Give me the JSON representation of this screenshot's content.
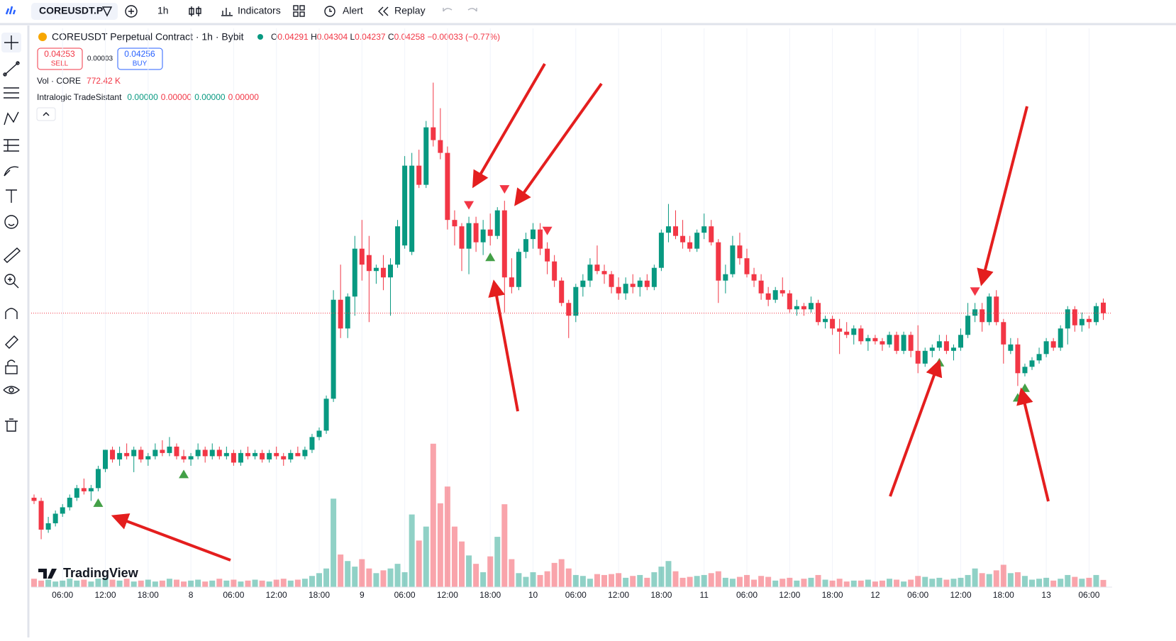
{
  "toolbar": {
    "symbol": "COREUSDT.P",
    "interval": "1h",
    "indicators": "Indicators",
    "alert": "Alert",
    "replay": "Replay"
  },
  "legend": {
    "title": "COREUSDT Perpetual Contract · 1h · Bybit",
    "o_label": "O",
    "open": 0.04291,
    "h_label": "H",
    "high": 0.04304,
    "l_label": "L",
    "low": 0.04237,
    "c_label": "C",
    "close": 0.04258,
    "change": "−0.00033 (−0.77%)"
  },
  "trade": {
    "sell_price": 0.04253,
    "sell": "SELL",
    "spread": 3e-05,
    "buy_price": 0.04256,
    "buy": "BUY"
  },
  "volume_legend": {
    "label": "Vol · CORE",
    "value": "772.42 K"
  },
  "indicator": {
    "name": "Intralogic TradeSistant",
    "values": [
      "0.00000",
      "0.00000",
      "0.00000",
      "0.00000"
    ]
  },
  "logo": "TradingView",
  "chart_data": {
    "type": "candlestick",
    "up_color": "#089981",
    "down_color": "#f23645",
    "ylim": [
      0.034,
      0.0515
    ],
    "volume_lim": [
      0,
      60000
    ],
    "candles": [
      [
        0.0368,
        0.0369,
        0.0366,
        0.0367
      ],
      [
        0.0367,
        0.0368,
        0.0355,
        0.0358
      ],
      [
        0.0358,
        0.0362,
        0.0357,
        0.036
      ],
      [
        0.036,
        0.0364,
        0.0359,
        0.0363
      ],
      [
        0.0363,
        0.0366,
        0.0362,
        0.0365
      ],
      [
        0.0365,
        0.0369,
        0.0364,
        0.0368
      ],
      [
        0.0368,
        0.0372,
        0.0367,
        0.0371
      ],
      [
        0.0371,
        0.0374,
        0.0369,
        0.037
      ],
      [
        0.037,
        0.0372,
        0.0367,
        0.0371
      ],
      [
        0.0371,
        0.0378,
        0.037,
        0.0377
      ],
      [
        0.0377,
        0.0383,
        0.0376,
        0.0383
      ],
      [
        0.0383,
        0.0384,
        0.0379,
        0.038
      ],
      [
        0.038,
        0.0384,
        0.0378,
        0.0382
      ],
      [
        0.0382,
        0.0385,
        0.038,
        0.0381
      ],
      [
        0.0381,
        0.0384,
        0.0376,
        0.0383
      ],
      [
        0.0383,
        0.0384,
        0.0379,
        0.038
      ],
      [
        0.038,
        0.0382,
        0.0378,
        0.0381
      ],
      [
        0.0381,
        0.0385,
        0.038,
        0.0383
      ],
      [
        0.0383,
        0.0386,
        0.0381,
        0.0382
      ],
      [
        0.0382,
        0.0387,
        0.0381,
        0.0384
      ],
      [
        0.0384,
        0.0385,
        0.038,
        0.0381
      ],
      [
        0.0381,
        0.0383,
        0.0379,
        0.038
      ],
      [
        0.038,
        0.0382,
        0.0378,
        0.0381
      ],
      [
        0.0381,
        0.0385,
        0.038,
        0.0383
      ],
      [
        0.0383,
        0.0384,
        0.0379,
        0.0381
      ],
      [
        0.0381,
        0.0385,
        0.038,
        0.0383
      ],
      [
        0.0383,
        0.0384,
        0.038,
        0.0381
      ],
      [
        0.0381,
        0.0384,
        0.038,
        0.0382
      ],
      [
        0.0382,
        0.0383,
        0.0378,
        0.0379
      ],
      [
        0.0379,
        0.0383,
        0.0378,
        0.0382
      ],
      [
        0.0382,
        0.0384,
        0.038,
        0.0381
      ],
      [
        0.0381,
        0.0383,
        0.038,
        0.0382
      ],
      [
        0.0382,
        0.0383,
        0.0379,
        0.038
      ],
      [
        0.038,
        0.0383,
        0.0379,
        0.0382
      ],
      [
        0.0382,
        0.0384,
        0.038,
        0.0381
      ],
      [
        0.0381,
        0.0382,
        0.0378,
        0.038
      ],
      [
        0.038,
        0.0383,
        0.0379,
        0.0382
      ],
      [
        0.0382,
        0.0384,
        0.0381,
        0.0381
      ],
      [
        0.0381,
        0.0384,
        0.038,
        0.0383
      ],
      [
        0.0383,
        0.0388,
        0.0382,
        0.0387
      ],
      [
        0.0387,
        0.039,
        0.0386,
        0.0389
      ],
      [
        0.0389,
        0.04,
        0.0388,
        0.0399
      ],
      [
        0.0399,
        0.0433,
        0.0398,
        0.043
      ],
      [
        0.043,
        0.0441,
        0.0418,
        0.0421
      ],
      [
        0.0421,
        0.0432,
        0.0418,
        0.0431
      ],
      [
        0.0431,
        0.045,
        0.0425,
        0.0446
      ],
      [
        0.0446,
        0.0455,
        0.0436,
        0.0441
      ],
      [
        0.0444,
        0.045,
        0.0423,
        0.0439
      ],
      [
        0.0439,
        0.0441,
        0.0435,
        0.044
      ],
      [
        0.044,
        0.0444,
        0.0433,
        0.0437
      ],
      [
        0.0437,
        0.0443,
        0.0425,
        0.0441
      ],
      [
        0.0441,
        0.0455,
        0.044,
        0.0453
      ],
      [
        0.0447,
        0.0475,
        0.0446,
        0.0472
      ],
      [
        0.0445,
        0.0476,
        0.0444,
        0.0472
      ],
      [
        0.0472,
        0.0477,
        0.0465,
        0.0466
      ],
      [
        0.0466,
        0.0486,
        0.0465,
        0.0484
      ],
      [
        0.0484,
        0.0498,
        0.0478,
        0.048
      ],
      [
        0.048,
        0.049,
        0.0474,
        0.0476
      ],
      [
        0.0476,
        0.0478,
        0.0452,
        0.0455
      ],
      [
        0.0455,
        0.0458,
        0.0447,
        0.0453
      ],
      [
        0.0453,
        0.0454,
        0.0439,
        0.0446
      ],
      [
        0.0446,
        0.0456,
        0.0438,
        0.0454
      ],
      [
        0.0454,
        0.0456,
        0.0445,
        0.0448
      ],
      [
        0.0448,
        0.0455,
        0.0444,
        0.0452
      ],
      [
        0.0452,
        0.0457,
        0.0447,
        0.045
      ],
      [
        0.045,
        0.0459,
        0.0449,
        0.0458
      ],
      [
        0.0458,
        0.0461,
        0.0426,
        0.0437
      ],
      [
        0.0437,
        0.0443,
        0.0432,
        0.0434
      ],
      [
        0.0434,
        0.0446,
        0.0433,
        0.0445
      ],
      [
        0.0445,
        0.0451,
        0.0443,
        0.0449
      ],
      [
        0.0449,
        0.0454,
        0.0446,
        0.0452
      ],
      [
        0.0452,
        0.0454,
        0.0444,
        0.0446
      ],
      [
        0.0446,
        0.0448,
        0.0438,
        0.0442
      ],
      [
        0.0442,
        0.0444,
        0.0434,
        0.0436
      ],
      [
        0.0436,
        0.0437,
        0.0428,
        0.0429
      ],
      [
        0.0429,
        0.043,
        0.0418,
        0.0425
      ],
      [
        0.0425,
        0.0435,
        0.0423,
        0.0434
      ],
      [
        0.0434,
        0.0438,
        0.0431,
        0.0436
      ],
      [
        0.0436,
        0.0443,
        0.0434,
        0.0441
      ],
      [
        0.0441,
        0.0447,
        0.0438,
        0.0439
      ],
      [
        0.0439,
        0.0441,
        0.0435,
        0.0438
      ],
      [
        0.0438,
        0.0439,
        0.0432,
        0.0434
      ],
      [
        0.0434,
        0.0437,
        0.043,
        0.0432
      ],
      [
        0.0432,
        0.0437,
        0.043,
        0.0435
      ],
      [
        0.0435,
        0.0438,
        0.0432,
        0.0434
      ],
      [
        0.0434,
        0.0437,
        0.0431,
        0.0436
      ],
      [
        0.0436,
        0.0438,
        0.0433,
        0.0434
      ],
      [
        0.0434,
        0.0441,
        0.0433,
        0.044
      ],
      [
        0.044,
        0.0452,
        0.0439,
        0.0451
      ],
      [
        0.0451,
        0.046,
        0.0448,
        0.0453
      ],
      [
        0.0453,
        0.0458,
        0.0449,
        0.045
      ],
      [
        0.045,
        0.0455,
        0.0446,
        0.0448
      ],
      [
        0.0448,
        0.045,
        0.0445,
        0.0446
      ],
      [
        0.0446,
        0.0452,
        0.0445,
        0.0451
      ],
      [
        0.0451,
        0.0457,
        0.0449,
        0.0453
      ],
      [
        0.0453,
        0.0455,
        0.0447,
        0.0448
      ],
      [
        0.0448,
        0.0449,
        0.0429,
        0.0436
      ],
      [
        0.0436,
        0.0441,
        0.0432,
        0.0438
      ],
      [
        0.0438,
        0.045,
        0.0437,
        0.0447
      ],
      [
        0.0447,
        0.0451,
        0.0441,
        0.0443
      ],
      [
        0.0443,
        0.0446,
        0.0437,
        0.0438
      ],
      [
        0.0438,
        0.044,
        0.0434,
        0.0436
      ],
      [
        0.0436,
        0.0438,
        0.043,
        0.0432
      ],
      [
        0.0432,
        0.0434,
        0.0428,
        0.043
      ],
      [
        0.043,
        0.0434,
        0.0429,
        0.0433
      ],
      [
        0.0433,
        0.0437,
        0.0431,
        0.0432
      ],
      [
        0.0432,
        0.0433,
        0.0426,
        0.0427
      ],
      [
        0.0427,
        0.043,
        0.0425,
        0.0428
      ],
      [
        0.0428,
        0.0429,
        0.0425,
        0.0427
      ],
      [
        0.0427,
        0.0431,
        0.0426,
        0.0429
      ],
      [
        0.0429,
        0.043,
        0.0422,
        0.0423
      ],
      [
        0.0423,
        0.0425,
        0.0421,
        0.0424
      ],
      [
        0.0424,
        0.0425,
        0.0419,
        0.0421
      ],
      [
        0.0421,
        0.0424,
        0.0413,
        0.042
      ],
      [
        0.042,
        0.0423,
        0.0418,
        0.0419
      ],
      [
        0.0419,
        0.0422,
        0.0416,
        0.0421
      ],
      [
        0.0421,
        0.0422,
        0.0416,
        0.0417
      ],
      [
        0.0417,
        0.0419,
        0.0414,
        0.0418
      ],
      [
        0.0418,
        0.0419,
        0.0416,
        0.0417
      ],
      [
        0.0417,
        0.0418,
        0.0414,
        0.0416
      ],
      [
        0.0416,
        0.042,
        0.0415,
        0.0419
      ],
      [
        0.0419,
        0.042,
        0.0413,
        0.0414
      ],
      [
        0.0414,
        0.042,
        0.0413,
        0.0419
      ],
      [
        0.0419,
        0.042,
        0.0412,
        0.0414
      ],
      [
        0.0414,
        0.0422,
        0.0407,
        0.041
      ],
      [
        0.041,
        0.0415,
        0.0409,
        0.0414
      ],
      [
        0.0414,
        0.0416,
        0.0412,
        0.0415
      ],
      [
        0.0415,
        0.0419,
        0.0414,
        0.0417
      ],
      [
        0.0417,
        0.0419,
        0.0413,
        0.0414
      ],
      [
        0.0414,
        0.0416,
        0.0411,
        0.0415
      ],
      [
        0.0415,
        0.0421,
        0.0414,
        0.0419
      ],
      [
        0.0419,
        0.0429,
        0.0418,
        0.0425
      ],
      [
        0.0425,
        0.0429,
        0.0423,
        0.0427
      ],
      [
        0.0427,
        0.0429,
        0.042,
        0.0423
      ],
      [
        0.0423,
        0.0432,
        0.0422,
        0.0431
      ],
      [
        0.0431,
        0.0433,
        0.0422,
        0.0423
      ],
      [
        0.0423,
        0.0424,
        0.041,
        0.0416
      ],
      [
        0.0414,
        0.0418,
        0.0413,
        0.0416
      ],
      [
        0.0416,
        0.0418,
        0.0403,
        0.0407
      ],
      [
        0.0407,
        0.041,
        0.0406,
        0.0409
      ],
      [
        0.0409,
        0.0412,
        0.0408,
        0.0411
      ],
      [
        0.0411,
        0.0415,
        0.041,
        0.0413
      ],
      [
        0.0413,
        0.0418,
        0.0412,
        0.0417
      ],
      [
        0.0417,
        0.0418,
        0.0414,
        0.0415
      ],
      [
        0.0415,
        0.0422,
        0.0414,
        0.0421
      ],
      [
        0.0421,
        0.0428,
        0.0416,
        0.0427
      ],
      [
        0.0427,
        0.0428,
        0.042,
        0.0422
      ],
      [
        0.0422,
        0.0426,
        0.042,
        0.0424
      ],
      [
        0.0424,
        0.0425,
        0.0421,
        0.0423
      ],
      [
        0.0423,
        0.0429,
        0.0422,
        0.0428
      ],
      [
        0.04291,
        0.04304,
        0.04237,
        0.04258
      ]
    ],
    "volumes": [
      900,
      700,
      800,
      600,
      700,
      900,
      700,
      800,
      600,
      900,
      1000,
      800,
      700,
      900,
      600,
      700,
      800,
      600,
      700,
      900,
      800,
      600,
      700,
      800,
      600,
      700,
      900,
      700,
      800,
      600,
      700,
      800,
      700,
      600,
      800,
      900,
      700,
      800,
      900,
      1200,
      1500,
      2000,
      9500,
      3500,
      2800,
      2200,
      3000,
      2000,
      1500,
      1800,
      2000,
      2500,
      1600,
      7800,
      5000,
      6500,
      15400,
      9000,
      10800,
      6500,
      4900,
      3400,
      2500,
      1600,
      3300,
      5400,
      8900,
      3000,
      1500,
      1100,
      1600,
      1300,
      1700,
      2600,
      3000,
      2000,
      1300,
      1200,
      900,
      1400,
      1300,
      1400,
      1500,
      1000,
      1200,
      1300,
      1000,
      1600,
      2200,
      2800,
      1700,
      1000,
      1100,
      1200,
      1300,
      1500,
      1700,
      1000,
      900,
      1100,
      1300,
      800,
      1200,
      1100,
      700,
      900,
      1000,
      700,
      900,
      1000,
      1300,
      800,
      700,
      900,
      600,
      700,
      700,
      800,
      600,
      700,
      900,
      800,
      600,
      800,
      1200,
      1100,
      900,
      1000,
      800,
      900,
      1000,
      1300,
      2000,
      1500,
      1400,
      1800,
      2400,
      1500,
      1600,
      1200,
      800,
      900,
      1000,
      700,
      900,
      1300,
      1100,
      900,
      1000,
      1300,
      772.42
    ],
    "buy_signals": [
      9,
      21,
      64,
      127,
      138,
      139
    ],
    "sell_signals": [
      61,
      66,
      72,
      132
    ],
    "x_labels": [
      "06:00",
      "12:00",
      "18:00",
      "8",
      "06:00",
      "12:00",
      "18:00",
      "9",
      "06:00",
      "12:00",
      "18:00",
      "10",
      "06:00",
      "12:00",
      "18:00",
      "11",
      "06:00",
      "12:00",
      "18:00",
      "12",
      "06:00",
      "12:00",
      "18:00",
      "13",
      "06:00"
    ]
  }
}
